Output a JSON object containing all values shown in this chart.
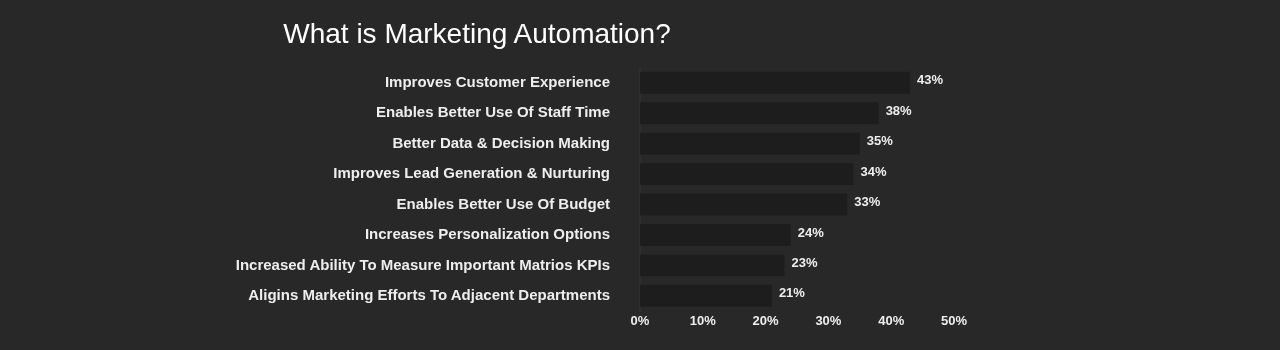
{
  "chart_data": {
    "type": "bar",
    "orientation": "horizontal",
    "title": "What is Marketing Automation?",
    "categories": [
      "Improves Customer Experience",
      "Enables Better Use Of Staff Time",
      "Better Data & Decision Making",
      "Improves Lead Generation & Nurturing",
      "Enables Better Use Of Budget",
      "Increases Personalization Options",
      "Increased Ability To Measure Important Matrios KPIs",
      "Aligins Marketing Efforts To Adjacent Departments"
    ],
    "values": [
      43,
      38,
      35,
      34,
      33,
      24,
      23,
      21
    ],
    "value_labels": [
      "43%",
      "38%",
      "35%",
      "34%",
      "33%",
      "24%",
      "23%",
      "21%"
    ],
    "color": "#1d1d1d",
    "xlim": [
      0,
      50
    ],
    "xticks": [
      {
        "value": 0,
        "label": "0%"
      },
      {
        "value": 10,
        "label": "10%"
      },
      {
        "value": 20,
        "label": "20%"
      },
      {
        "value": 30,
        "label": "30%"
      },
      {
        "value": 40,
        "label": "40%"
      },
      {
        "value": 50,
        "label": "50%"
      }
    ],
    "grid": false,
    "legend": false
  }
}
